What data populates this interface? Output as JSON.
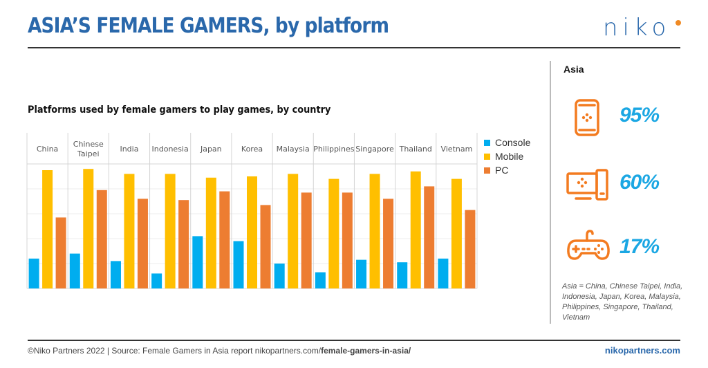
{
  "header": {
    "title": "ASIA’S FEMALE GAMERS, by platform",
    "logo_text": "niko",
    "logo_dot_color": "#f08a24",
    "brand_color": "#2a68ab"
  },
  "colors": {
    "console": "#00adef",
    "mobile": "#ffbf00",
    "pc": "#ed7d31",
    "stat_text": "#1ba7e3",
    "icon": "#f37b20"
  },
  "chart_data": {
    "type": "bar",
    "title": "Platforms used by female gamers to play games, by country",
    "xlabel": "",
    "ylabel": "",
    "ylim": [
      0,
      100
    ],
    "unit": "%",
    "grid": true,
    "legend_position": "right",
    "categories": [
      [
        "China"
      ],
      [
        "Chinese",
        "Taipei"
      ],
      [
        "India"
      ],
      [
        "Indonesia"
      ],
      [
        "Japan"
      ],
      [
        "Korea"
      ],
      [
        "Malaysia"
      ],
      [
        "Philippines"
      ],
      [
        "Singapore"
      ],
      [
        "Thailand"
      ],
      [
        "Vietnam"
      ]
    ],
    "series": [
      {
        "name": "Console",
        "key": "console",
        "values": [
          24,
          28,
          22,
          12,
          42,
          38,
          20,
          13,
          23,
          21,
          24
        ]
      },
      {
        "name": "Mobile",
        "key": "mobile",
        "values": [
          95,
          96,
          92,
          92,
          89,
          90,
          92,
          88,
          92,
          94,
          88
        ]
      },
      {
        "name": "PC",
        "key": "pc",
        "values": [
          57,
          79,
          72,
          71,
          78,
          67,
          77,
          77,
          72,
          82,
          63
        ]
      }
    ]
  },
  "side_panel": {
    "title": "Asia",
    "stats": [
      {
        "icon": "mobile-phone-icon",
        "value": "95%"
      },
      {
        "icon": "pc-monitor-icon",
        "value": "60%"
      },
      {
        "icon": "gamepad-console-icon",
        "value": "17%"
      }
    ],
    "note": "Asia = China, Chinese Taipei, India, Indonesia, Japan, Korea, Malaysia, Philippines, Singapore, Thailand, Vietnam"
  },
  "footer": {
    "source_prefix": "©Niko Partners 2022  |  Source: Female Gamers in Asia report nikopartners.com/",
    "source_link": "female-gamers-in-asia/",
    "website": "nikopartners.com"
  }
}
